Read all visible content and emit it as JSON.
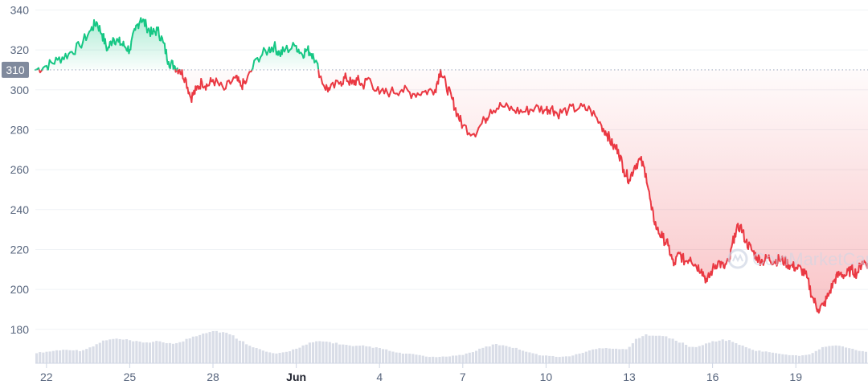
{
  "chart_data": {
    "type": "line",
    "y_ticks": [
      "340",
      "320",
      "300",
      "280",
      "260",
      "240",
      "220",
      "200",
      "180"
    ],
    "x_ticks": [
      "22",
      "25",
      "28",
      "Jun",
      "4",
      "7",
      "10",
      "13",
      "16",
      "19"
    ],
    "ylim": [
      163,
      345
    ],
    "xlim": [
      21.6,
      51.6
    ],
    "grid": true,
    "baseline": {
      "value": 310,
      "label": "310"
    },
    "series": [
      {
        "x": [
          21.6,
          22.0,
          22.4,
          22.8,
          23.2,
          23.6,
          23.8,
          24.0,
          24.2,
          24.4,
          24.6,
          24.8,
          25.0,
          25.2,
          25.4,
          25.6,
          25.8,
          26.0,
          26.2,
          26.4,
          26.6,
          26.8,
          27.0,
          27.2,
          27.4,
          27.6,
          27.8,
          28.0,
          28.4,
          28.8,
          29.0,
          29.2,
          29.6,
          30.0,
          30.2,
          30.4,
          30.6,
          31.0,
          31.2,
          31.4,
          31.6,
          32.0,
          32.2,
          32.6,
          32.8,
          33.0,
          33.2,
          33.4,
          33.6,
          34.0,
          34.4,
          34.8,
          35.2,
          35.6,
          36.0,
          36.2,
          36.4,
          36.6,
          36.8,
          37.0,
          37.4,
          37.8,
          38.0,
          38.4,
          38.8,
          39.2,
          39.6,
          40.0,
          40.2,
          40.4,
          40.8,
          41.2,
          41.6,
          42.0,
          42.2,
          42.4,
          42.6,
          42.8,
          43.0,
          43.2,
          43.4,
          43.6,
          43.8,
          44.0,
          44.2,
          44.4,
          44.6,
          44.8,
          45.0,
          45.2,
          45.4,
          45.6,
          45.8,
          46.0,
          46.2,
          46.4,
          46.6,
          46.8,
          47.0,
          47.2,
          47.4,
          47.6,
          47.8,
          48.0,
          48.2,
          48.4,
          48.6,
          48.8,
          49.0,
          49.2,
          49.4,
          49.6,
          49.8,
          50.0,
          50.2,
          50.4,
          50.6,
          50.8,
          51.0,
          51.2,
          51.4,
          51.6
        ],
        "y": [
          310,
          312,
          315,
          318,
          322,
          330,
          334,
          328,
          320,
          326,
          324,
          322,
          320,
          330,
          336,
          332,
          328,
          330,
          324,
          314,
          312,
          310,
          306,
          296,
          300,
          304,
          302,
          305,
          300,
          306,
          302,
          304,
          316,
          320,
          322,
          318,
          320,
          322,
          318,
          320,
          318,
          302,
          300,
          304,
          306,
          303,
          305,
          302,
          306,
          298,
          299,
          300,
          298,
          299,
          300,
          310,
          302,
          296,
          288,
          282,
          278,
          285,
          290,
          292,
          290,
          289,
          291,
          290,
          291,
          288,
          290,
          291,
          290,
          282,
          278,
          272,
          270,
          260,
          255,
          262,
          265,
          258,
          240,
          230,
          226,
          222,
          212,
          218,
          214,
          216,
          212,
          210,
          204,
          210,
          214,
          211,
          214,
          228,
          232,
          224,
          220,
          216,
          214,
          216,
          214,
          215,
          214,
          212,
          211,
          210,
          206,
          196,
          190,
          192,
          198,
          205,
          208,
          207,
          210,
          208,
          214,
          213
        ],
        "color_above": "#16c784",
        "color_below": "#ea3943"
      }
    ],
    "volume_profile": [
      0.2,
      0.22,
      0.25,
      0.26,
      0.24,
      0.3,
      0.42,
      0.46,
      0.45,
      0.41,
      0.4,
      0.41,
      0.39,
      0.38,
      0.48,
      0.56,
      0.62,
      0.6,
      0.52,
      0.4,
      0.3,
      0.22,
      0.18,
      0.22,
      0.3,
      0.38,
      0.42,
      0.4,
      0.36,
      0.32,
      0.33,
      0.3,
      0.26,
      0.2,
      0.18,
      0.16,
      0.12,
      0.12,
      0.14,
      0.16,
      0.22,
      0.3,
      0.36,
      0.34,
      0.28,
      0.22,
      0.16,
      0.14,
      0.12,
      0.14,
      0.2,
      0.26,
      0.3,
      0.28,
      0.26,
      0.46,
      0.55,
      0.54,
      0.48,
      0.4,
      0.3,
      0.34,
      0.42,
      0.45,
      0.4,
      0.3,
      0.24,
      0.22,
      0.18,
      0.16,
      0.14,
      0.18,
      0.3,
      0.34,
      0.32,
      0.26,
      0.22
    ],
    "colors": {
      "up": "#16c784",
      "down": "#ea3943",
      "volume": "#d9dde7",
      "grid": "#eff2f5",
      "baseline": "#a6b0c3",
      "badge_bg": "#808a9d",
      "badge_text": "#ffffff"
    }
  },
  "watermark": {
    "text": "CoinMarketCap",
    "icon": "coinmarketcap-logo-icon"
  }
}
